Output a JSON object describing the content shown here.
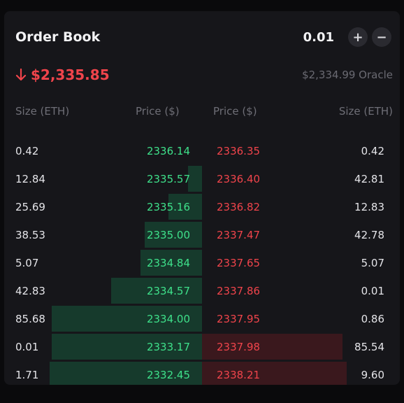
{
  "header": {
    "title": "Order Book",
    "tick_size": "0.01",
    "increase_label": "+",
    "decrease_label": "−"
  },
  "price": {
    "last": "$2,335.85",
    "direction": "down",
    "oracle": "$2,334.99 Oracle"
  },
  "columns": {
    "bid_size": "Size (ETH)",
    "bid_price": "Price ($)",
    "ask_price": "Price ($)",
    "ask_size": "Size (ETH)"
  },
  "colors": {
    "bid": "#3ee08a",
    "ask": "#f0444b",
    "bid_depth": "#163a2c",
    "ask_depth": "#3a181d"
  },
  "rows": [
    {
      "bid_size": "0.42",
      "bid_price": "2336.14",
      "ask_price": "2336.35",
      "ask_size": "0.42",
      "bid_depth": 0.0,
      "ask_depth": 0.0
    },
    {
      "bid_size": "12.84",
      "bid_price": "2335.57",
      "ask_price": "2336.40",
      "ask_size": "42.81",
      "bid_depth": 0.07,
      "ask_depth": 0.0
    },
    {
      "bid_size": "25.69",
      "bid_price": "2335.16",
      "ask_price": "2336.82",
      "ask_size": "12.83",
      "bid_depth": 0.17,
      "ask_depth": 0.0
    },
    {
      "bid_size": "38.53",
      "bid_price": "2335.00",
      "ask_price": "2337.47",
      "ask_size": "42.78",
      "bid_depth": 0.29,
      "ask_depth": 0.0
    },
    {
      "bid_size": "5.07",
      "bid_price": "2334.84",
      "ask_price": "2337.65",
      "ask_size": "5.07",
      "bid_depth": 0.31,
      "ask_depth": 0.0
    },
    {
      "bid_size": "42.83",
      "bid_price": "2334.57",
      "ask_price": "2337.86",
      "ask_size": "0.01",
      "bid_depth": 0.46,
      "ask_depth": 0.0
    },
    {
      "bid_size": "85.68",
      "bid_price": "2334.00",
      "ask_price": "2337.95",
      "ask_size": "0.86",
      "bid_depth": 0.76,
      "ask_depth": 0.0
    },
    {
      "bid_size": "0.01",
      "bid_price": "2333.17",
      "ask_price": "2337.98",
      "ask_size": "85.54",
      "bid_depth": 0.76,
      "ask_depth": 0.71
    },
    {
      "bid_size": "1.71",
      "bid_price": "2332.45",
      "ask_price": "2338.21",
      "ask_size": "9.60",
      "bid_depth": 0.77,
      "ask_depth": 0.73
    }
  ]
}
